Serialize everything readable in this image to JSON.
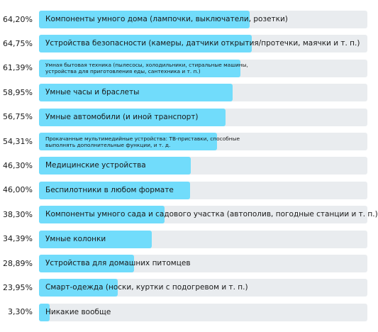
{
  "chart_data": {
    "type": "bar",
    "orientation": "horizontal",
    "xlim": [
      0,
      100
    ],
    "grid": false,
    "colors": {
      "bar": "#71dcfb",
      "track": "#e9ecef",
      "text": "#1a1a1a"
    },
    "items": [
      {
        "value_label": "64,20%",
        "value": 64.2,
        "label": "Компоненты умного дома (лампочки, выключатели, розетки)",
        "size": "normal"
      },
      {
        "value_label": "64,75%",
        "value": 64.75,
        "label": "Устройства безопасности (камеры, датчики открытия/протечки, маячки и т. п.)",
        "size": "normal"
      },
      {
        "value_label": "61,39%",
        "value": 61.39,
        "label": "Умная бытовая техника (пылесосы, холодильники, стиральные машины, устройства для приготовления еды, сантехника и т. п.)",
        "size": "small"
      },
      {
        "value_label": "58,95%",
        "value": 58.95,
        "label": "Умные часы и браслеты",
        "size": "normal"
      },
      {
        "value_label": "56,75%",
        "value": 56.75,
        "label": "Умные автомобили (и иной транспорт)",
        "size": "normal"
      },
      {
        "value_label": "54,31%",
        "value": 54.31,
        "label": "Прокачанные мультимедийные устройства: ТВ-приставки, способные выполнять дополнительные функции, и т. д.",
        "size": "small"
      },
      {
        "value_label": "46,30%",
        "value": 46.3,
        "label": "Медицинские устройства",
        "size": "normal"
      },
      {
        "value_label": "46,00%",
        "value": 46.0,
        "label": "Беспилотники в любом формате",
        "size": "normal"
      },
      {
        "value_label": "38,30%",
        "value": 38.3,
        "label": "Компоненты умного сада и садового участка (автополив, погодные станции и т. п.)",
        "size": "normal"
      },
      {
        "value_label": "34,39%",
        "value": 34.39,
        "label": "Умные колонки",
        "size": "normal"
      },
      {
        "value_label": "28,89%",
        "value": 28.89,
        "label": "Устройства для домашних питомцев",
        "size": "normal"
      },
      {
        "value_label": "23,95%",
        "value": 23.95,
        "label": "Смарт-одежда (носки, куртки с подогревом и т. п.)",
        "size": "normal"
      },
      {
        "value_label": "3,30%",
        "value": 3.3,
        "label": "Никакие вообще",
        "size": "normal"
      }
    ]
  }
}
